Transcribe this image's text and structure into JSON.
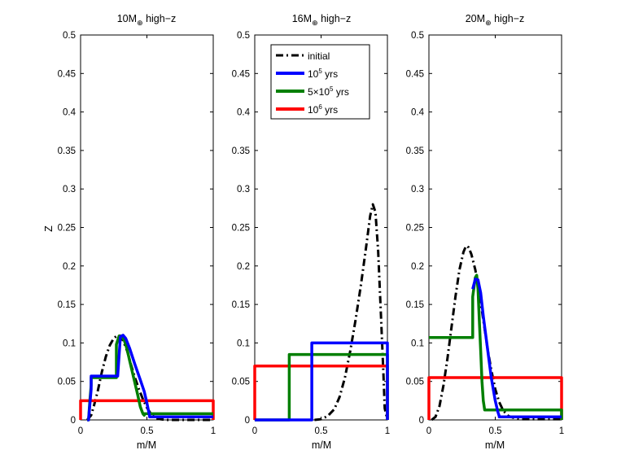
{
  "figure": {
    "ylabel": "Z",
    "xlabel": "m/M"
  },
  "legend": {
    "entries": [
      {
        "label": "initial",
        "color": "#000000",
        "style": "dashdot"
      },
      {
        "label_base": "10",
        "label_sup": "5",
        "label_tail": " yrs",
        "color": "#0000ff",
        "style": "solid"
      },
      {
        "label_base": "5×10",
        "label_sup": "5",
        "label_tail": " yrs",
        "color": "#007f00",
        "style": "solid"
      },
      {
        "label_base": "10",
        "label_sup": "6",
        "label_tail": " yrs",
        "color": "#ff0000",
        "style": "solid"
      }
    ]
  },
  "chart_data": [
    {
      "type": "line",
      "title_main": "10M",
      "title_sub": "⊕",
      "title_tail": " high−z",
      "xlabel": "m/M",
      "ylabel": "Z",
      "xlim": [
        0,
        1
      ],
      "ylim": [
        0,
        0.5
      ],
      "xticks": [
        "0",
        "0.5",
        "1"
      ],
      "yticks": [
        "0",
        "0.05",
        "0.1",
        "0.15",
        "0.2",
        "0.25",
        "0.3",
        "0.35",
        "0.4",
        "0.45",
        "0.5"
      ],
      "series": [
        {
          "name": "initial",
          "x": [
            0.05,
            0.08,
            0.1,
            0.13,
            0.16,
            0.19,
            0.22,
            0.25,
            0.28,
            0.3,
            0.32,
            0.35,
            0.38,
            0.41,
            0.44,
            0.47,
            0.5,
            0.53,
            0.56,
            0.6,
            0.65,
            1.0
          ],
          "y": [
            0,
            0.006,
            0.018,
            0.038,
            0.062,
            0.082,
            0.097,
            0.106,
            0.11,
            0.109,
            0.103,
            0.09,
            0.072,
            0.055,
            0.04,
            0.027,
            0.016,
            0.008,
            0.003,
            0.001,
            0,
            0
          ]
        },
        {
          "name": "1e5",
          "x": [
            0.05,
            0.06,
            0.07,
            0.08,
            0.08,
            0.28,
            0.3,
            0.32,
            0.34,
            0.37,
            0.41,
            0.45,
            0.48,
            0.5,
            0.52,
            0.52,
            1.0
          ],
          "y": [
            0,
            0,
            0.02,
            0.04,
            0.057,
            0.057,
            0.108,
            0.11,
            0.106,
            0.093,
            0.072,
            0.052,
            0.037,
            0.022,
            0.005,
            0.004,
            0.004
          ]
        },
        {
          "name": "5e5",
          "x": [
            0.05,
            0.06,
            0.07,
            0.08,
            0.08,
            0.27,
            0.27,
            0.29,
            0.31,
            0.33,
            0.35,
            0.37,
            0.4,
            0.43,
            0.45,
            0.47,
            0.48,
            0.48,
            1.0
          ],
          "y": [
            0,
            0,
            0.025,
            0.045,
            0.055,
            0.055,
            0.098,
            0.109,
            0.109,
            0.103,
            0.092,
            0.077,
            0.055,
            0.033,
            0.017,
            0.008,
            0.006,
            0.008,
            0.008
          ]
        },
        {
          "name": "1e6",
          "x": [
            0.0,
            0.0,
            1.0,
            1.0
          ],
          "y": [
            0,
            0.025,
            0.025,
            0
          ]
        }
      ]
    },
    {
      "type": "line",
      "title_main": "16M",
      "title_sub": "⊕",
      "title_tail": " high−z",
      "xlabel": "m/M",
      "ylabel": "",
      "xlim": [
        0,
        1
      ],
      "ylim": [
        0,
        0.5
      ],
      "xticks": [
        "0",
        "0.5",
        "1"
      ],
      "yticks": [
        "0",
        "0.05",
        "0.1",
        "0.15",
        "0.2",
        "0.25",
        "0.3",
        "0.35",
        "0.4",
        "0.45",
        "0.5"
      ],
      "series": [
        {
          "name": "initial",
          "x": [
            0.45,
            0.5,
            0.55,
            0.6,
            0.64,
            0.68,
            0.72,
            0.76,
            0.8,
            0.84,
            0.87,
            0.89,
            0.91,
            0.93,
            0.95,
            0.97,
            0.98,
            1.0
          ],
          "y": [
            0,
            0.001,
            0.005,
            0.014,
            0.03,
            0.055,
            0.09,
            0.13,
            0.175,
            0.225,
            0.265,
            0.28,
            0.27,
            0.22,
            0.14,
            0.06,
            0.015,
            0
          ]
        },
        {
          "name": "1e5",
          "x": [
            0,
            0.4,
            0.43,
            0.43,
            1.0,
            1.0
          ],
          "y": [
            0,
            0,
            0,
            0.1,
            0.1,
            0
          ]
        },
        {
          "name": "5e5",
          "x": [
            0,
            0.24,
            0.26,
            0.26,
            1.0,
            1.0
          ],
          "y": [
            0,
            0,
            0,
            0.085,
            0.085,
            0
          ]
        },
        {
          "name": "1e6",
          "x": [
            0.0,
            0.0,
            1.0,
            1.0
          ],
          "y": [
            0,
            0.07,
            0.07,
            0
          ]
        }
      ]
    },
    {
      "type": "line",
      "title_main": "20M",
      "title_sub": "⊕",
      "title_tail": " high−z",
      "xlabel": "m/M",
      "ylabel": "",
      "xlim": [
        0,
        1
      ],
      "ylim": [
        0,
        0.5
      ],
      "xticks": [
        "0",
        "0.5",
        "1"
      ],
      "yticks": [
        "0",
        "0.05",
        "0.1",
        "0.15",
        "0.2",
        "0.25",
        "0.3",
        "0.35",
        "0.4",
        "0.45",
        "0.5"
      ],
      "series": [
        {
          "name": "initial",
          "x": [
            0.02,
            0.05,
            0.08,
            0.11,
            0.14,
            0.17,
            0.2,
            0.23,
            0.26,
            0.28,
            0.3,
            0.32,
            0.35,
            0.38,
            0.41,
            0.44,
            0.47,
            0.5,
            0.53,
            0.56,
            0.6,
            0.65,
            0.7,
            1.0
          ],
          "y": [
            0,
            0.004,
            0.018,
            0.045,
            0.08,
            0.12,
            0.16,
            0.195,
            0.218,
            0.226,
            0.224,
            0.215,
            0.195,
            0.165,
            0.13,
            0.095,
            0.065,
            0.04,
            0.023,
            0.012,
            0.005,
            0.002,
            0.001,
            0.001
          ]
        },
        {
          "name": "1e5",
          "x": [
            0.33,
            0.35,
            0.37,
            0.39,
            0.41,
            0.44,
            0.47,
            0.5,
            0.52,
            0.53,
            0.53,
            1.0
          ],
          "y": [
            0.17,
            0.183,
            0.182,
            0.165,
            0.135,
            0.095,
            0.055,
            0.025,
            0.01,
            0.005,
            0.004,
            0.004
          ]
        },
        {
          "name": "5e5",
          "x": [
            0,
            0.33,
            0.33,
            0.35,
            0.36,
            0.37,
            0.38,
            0.39,
            0.4,
            0.41,
            0.42,
            1.0,
            1.0
          ],
          "y": [
            0.107,
            0.107,
            0.16,
            0.185,
            0.188,
            0.17,
            0.13,
            0.09,
            0.05,
            0.025,
            0.013,
            0.013,
            0
          ]
        },
        {
          "name": "1e6",
          "x": [
            0.0,
            0.0,
            1.0,
            1.0
          ],
          "y": [
            0,
            0.055,
            0.055,
            0
          ]
        }
      ]
    }
  ]
}
